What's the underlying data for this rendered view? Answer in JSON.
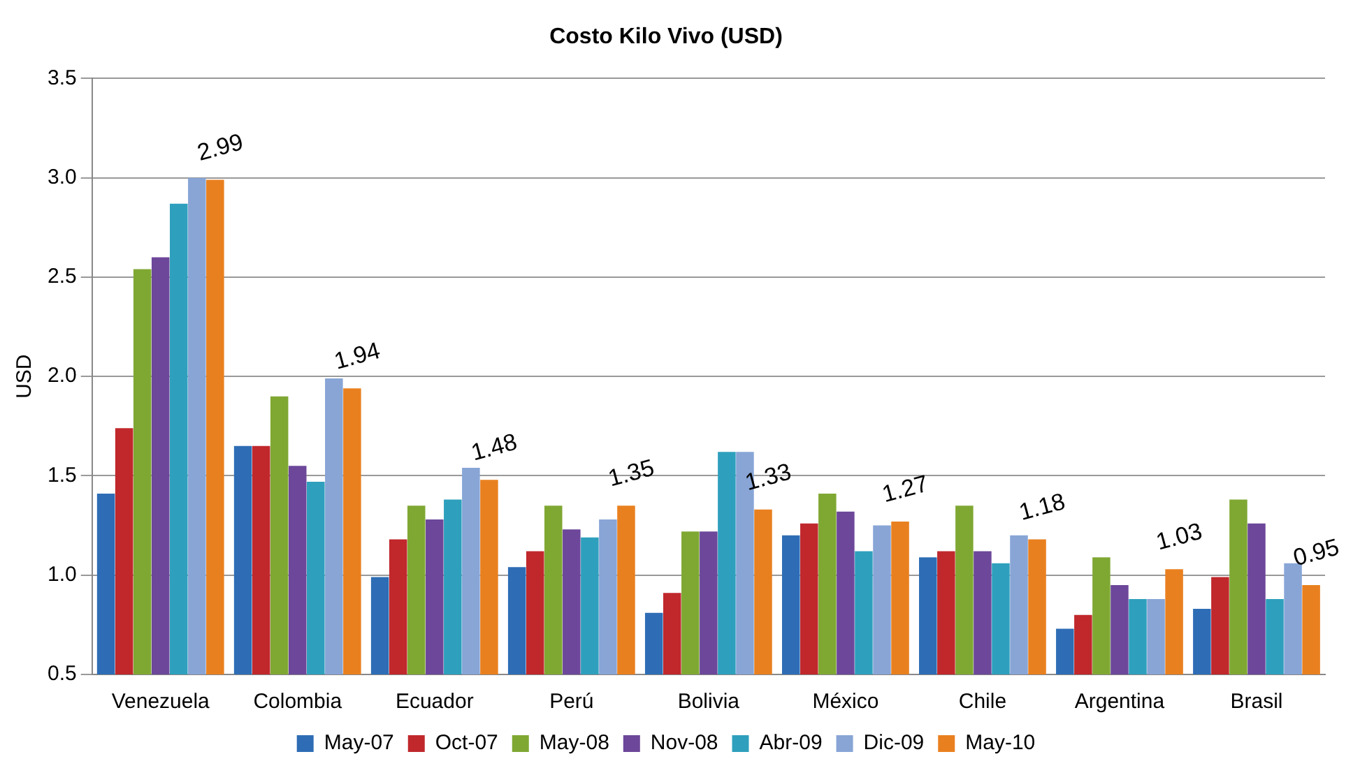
{
  "chart_data": {
    "type": "bar",
    "title": "Costo Kilo Vivo (USD)",
    "ylabel": "USD",
    "categories": [
      "Venezuela",
      "Colombia",
      "Ecuador",
      "Perú",
      "Bolivia",
      "México",
      "Chile",
      "Argentina",
      "Brasil"
    ],
    "series": [
      {
        "name": "May-07",
        "color": "#2e6db5",
        "values": [
          1.41,
          1.65,
          0.99,
          1.04,
          0.81,
          1.2,
          1.09,
          0.73,
          0.83
        ]
      },
      {
        "name": "Oct-07",
        "color": "#c0282c",
        "values": [
          1.74,
          1.65,
          1.18,
          1.12,
          0.91,
          1.26,
          1.12,
          0.8,
          0.99
        ]
      },
      {
        "name": "May-08",
        "color": "#7fa833",
        "values": [
          2.54,
          1.9,
          1.35,
          1.35,
          1.22,
          1.41,
          1.35,
          1.09,
          1.38
        ]
      },
      {
        "name": "Nov-08",
        "color": "#6c479a",
        "values": [
          2.6,
          1.55,
          1.28,
          1.23,
          1.22,
          1.32,
          1.12,
          0.95,
          1.26
        ]
      },
      {
        "name": "Abr-09",
        "color": "#2ea0bd",
        "values": [
          2.87,
          1.47,
          1.38,
          1.19,
          1.62,
          1.12,
          1.06,
          0.88,
          0.88
        ]
      },
      {
        "name": "Dic-09",
        "color": "#88a5d6",
        "values": [
          3.0,
          1.99,
          1.54,
          1.28,
          1.62,
          1.25,
          1.2,
          0.88,
          1.06
        ]
      },
      {
        "name": "May-10",
        "color": "#e9801f",
        "values": [
          2.99,
          1.94,
          1.48,
          1.35,
          1.33,
          1.27,
          1.18,
          1.03,
          0.95
        ],
        "value_labels": [
          "2.99",
          "1.94",
          "1.48",
          "1.35",
          "1.33",
          "1.27",
          "1.18",
          "1.03",
          "0.95"
        ]
      }
    ],
    "ylim": [
      0.5,
      3.5
    ],
    "yticks": [
      "0.5",
      "1.0",
      "1.5",
      "2.0",
      "2.5",
      "3.0",
      "3.5"
    ],
    "grid": "y",
    "legend": "bottom"
  }
}
